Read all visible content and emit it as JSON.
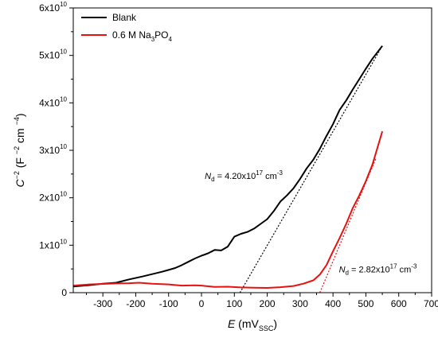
{
  "chart_data": {
    "type": "line",
    "xlabel": {
      "symbol": "E",
      "unit": "mV",
      "unit_sub": "SSC"
    },
    "ylabel": {
      "symbol": "C",
      "sup": "−2",
      "unit": "F",
      "unit_sup1": "−2",
      "unit_mid": "cm",
      "unit_sup2": "−4"
    },
    "xlim": [
      -390,
      700
    ],
    "ylim": [
      0,
      60000000000.0
    ],
    "x_ticks": [
      -300,
      -200,
      -100,
      0,
      100,
      200,
      300,
      400,
      500,
      600,
      700
    ],
    "x_tick_labels": [
      "-300",
      "-200",
      "-100",
      "0",
      "100",
      "200",
      "300",
      "400",
      "500",
      "600",
      "700"
    ],
    "y_ticks": [
      {
        "value": 0,
        "mant": "0",
        "exp": ""
      },
      {
        "value": 10000000000.0,
        "mant": "1x10",
        "exp": "10"
      },
      {
        "value": 20000000000.0,
        "mant": "2x10",
        "exp": "10"
      },
      {
        "value": 30000000000.0,
        "mant": "3x10",
        "exp": "10"
      },
      {
        "value": 40000000000.0,
        "mant": "4x10",
        "exp": "10"
      },
      {
        "value": 50000000000.0,
        "mant": "5x10",
        "exp": "10"
      },
      {
        "value": 60000000000.0,
        "mant": "6x10",
        "exp": "10"
      }
    ],
    "legend_position": "top-left",
    "series": [
      {
        "name": "Blank",
        "name_parts": [
          {
            "t": "Blank",
            "s": ""
          }
        ],
        "color": "#000000",
        "x": [
          -390,
          -340,
          -300,
          -260,
          -220,
          -180,
          -150,
          -120,
          -100,
          -80,
          -60,
          -40,
          -20,
          0,
          20,
          40,
          60,
          80,
          100,
          120,
          140,
          160,
          180,
          200,
          220,
          240,
          260,
          280,
          300,
          320,
          340,
          360,
          380,
          400,
          420,
          440,
          460,
          480,
          500,
          520,
          550
        ],
        "y": [
          1300000000.0,
          1600000000.0,
          1900000000.0,
          2100000000.0,
          2800000000.0,
          3400000000.0,
          3900000000.0,
          4400000000.0,
          4800000000.0,
          5200000000.0,
          5800000000.0,
          6500000000.0,
          7200000000.0,
          7800000000.0,
          8300000000.0,
          9000000000.0,
          8900000000.0,
          9700000000.0,
          11800000000.0,
          12400000000.0,
          12800000000.0,
          13500000000.0,
          14500000000.0,
          15500000000.0,
          17200000000.0,
          19200000000.0,
          20500000000.0,
          22000000000.0,
          24000000000.0,
          26200000000.0,
          28000000000.0,
          30300000000.0,
          33000000000.0,
          35500000000.0,
          38500000000.0,
          40500000000.0,
          42800000000.0,
          45000000000.0,
          47200000000.0,
          49300000000.0,
          52000000000.0
        ]
      },
      {
        "name": "0.6 M Na3PO4",
        "name_parts": [
          {
            "t": "0.6 M Na",
            "s": ""
          },
          {
            "t": "3",
            "s": "sub"
          },
          {
            "t": "PO",
            "s": ""
          },
          {
            "t": "4",
            "s": "sub"
          }
        ],
        "color": "#e8110f",
        "x": [
          -390,
          -340,
          -300,
          -260,
          -220,
          -190,
          -150,
          -100,
          -60,
          -20,
          0,
          40,
          80,
          120,
          160,
          200,
          240,
          280,
          310,
          340,
          360,
          380,
          400,
          420,
          440,
          460,
          480,
          500,
          520,
          550
        ],
        "y": [
          1500000000.0,
          1750000000.0,
          1850000000.0,
          1950000000.0,
          2000000000.0,
          2100000000.0,
          1900000000.0,
          1750000000.0,
          1500000000.0,
          1550000000.0,
          1500000000.0,
          1200000000.0,
          1250000000.0,
          1100000000.0,
          1050000000.0,
          1000000000.0,
          1150000000.0,
          1400000000.0,
          1900000000.0,
          2600000000.0,
          3800000000.0,
          5800000000.0,
          8700000000.0,
          11500000000.0,
          14500000000.0,
          17800000000.0,
          20500000000.0,
          23500000000.0,
          27000000000.0,
          34000000000.0
        ]
      }
    ],
    "fit_lines": [
      {
        "color": "#000000",
        "x": [
          117,
          550
        ],
        "y": [
          0,
          52000000000.0
        ]
      },
      {
        "color": "#e8110f",
        "x": [
          360,
          530
        ],
        "y": [
          0,
          28200000000.0
        ]
      }
    ],
    "annotations": [
      {
        "sym": "N",
        "sub": "d",
        "text": " = 4.20x10",
        "sup": "17",
        "unit": " cm",
        "unit_sup": "-3",
        "at_x": 10,
        "at_y": 24000000000.0
      },
      {
        "sym": "N",
        "sub": "d",
        "text": " = 2.82x10",
        "sup": "17",
        "unit": " cm",
        "unit_sup": "-3",
        "at_x": 418,
        "at_y": 4300000000.0
      }
    ]
  }
}
